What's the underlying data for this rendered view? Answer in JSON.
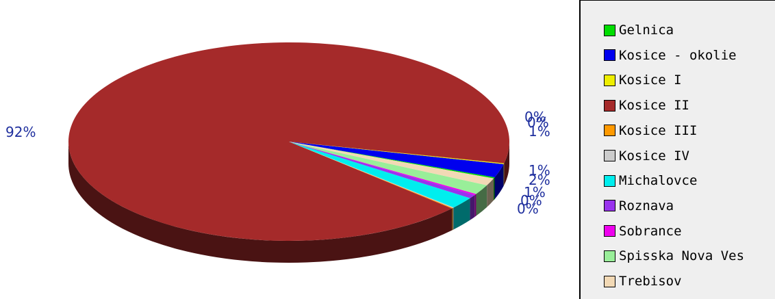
{
  "chart_data": {
    "type": "pie",
    "three_d": true,
    "labels": [
      "Gelnica",
      "Kosice - okolie",
      "Kosice I",
      "Kosice II",
      "Kosice III",
      "Kosice IV",
      "Michalovce",
      "Roznava",
      "Sobrance",
      "Spisska Nova Ves",
      "Trebisov"
    ],
    "colors": [
      "#00dd00",
      "#0000ee",
      "#eeee00",
      "#a52a2a",
      "#ff9900",
      "#cccccc",
      "#00eeee",
      "#9933ee",
      "#ee00ee",
      "#99ee99",
      "#f2d9b5"
    ],
    "values": [
      0.2,
      2.2,
      0.15,
      91.6,
      0.1,
      0.1,
      1.9,
      0.6,
      0.2,
      1.6,
      1.2
    ],
    "percent_labels": [
      "92%",
      "0%",
      "0%",
      "1%",
      "1%",
      "2%",
      "1%",
      "0%",
      "0%"
    ],
    "legend_position": "right"
  }
}
